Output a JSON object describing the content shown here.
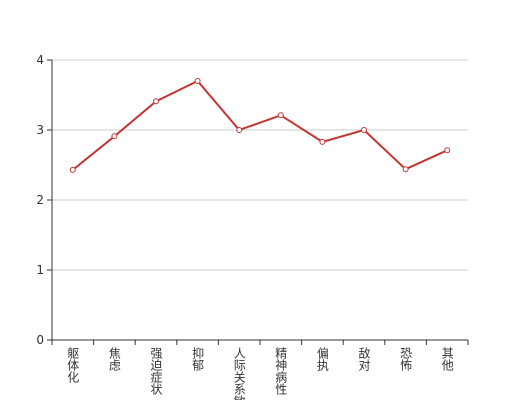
{
  "chart_data": {
    "type": "line",
    "categories": [
      "躯体化",
      "焦虑",
      "强迫症状",
      "抑郁",
      "人际关系敏感",
      "精神病性",
      "偏执",
      "敌对",
      "恐怖",
      "其他"
    ],
    "series": [
      {
        "color": "#c23531",
        "values": [
          2.43,
          2.91,
          3.41,
          3.7,
          3.0,
          3.21,
          2.83,
          3.0,
          2.44,
          2.71
        ]
      }
    ],
    "ylim": [
      0,
      4
    ],
    "yticks": [
      0,
      1,
      2,
      3,
      4
    ],
    "grid": true
  }
}
